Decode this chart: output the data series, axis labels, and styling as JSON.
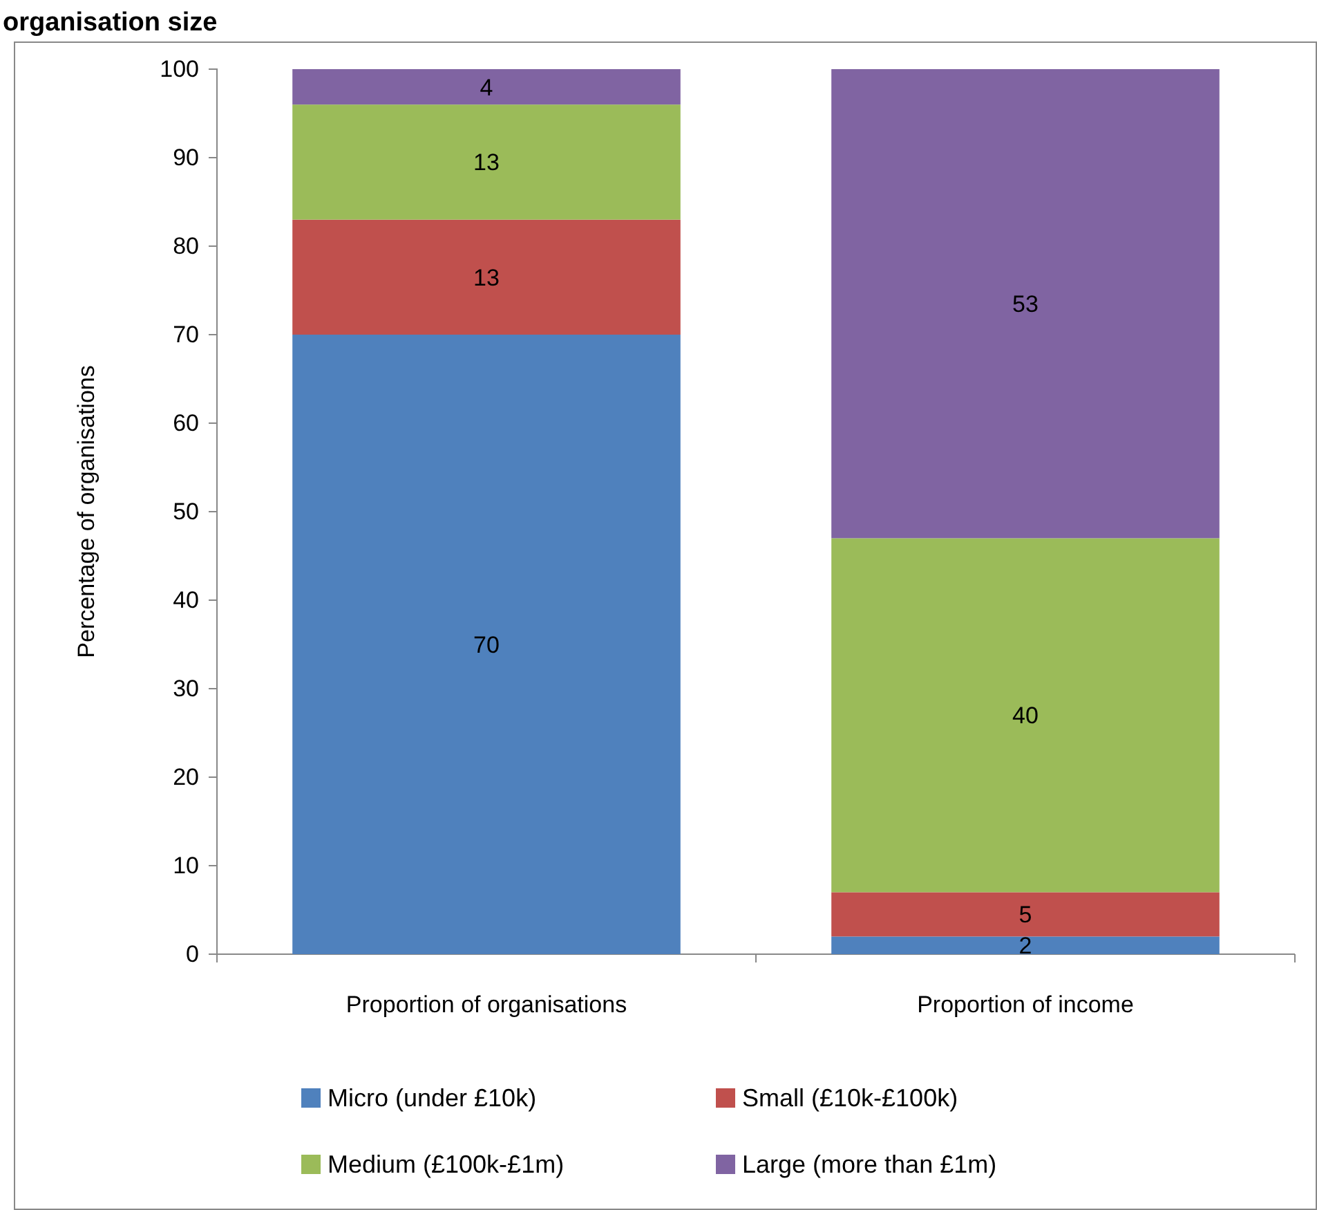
{
  "chart_data": {
    "type": "bar",
    "title": "organisation size",
    "ylabel": "Percentage of organisations",
    "categories": [
      "Proportion of organisations",
      "Proportion of income"
    ],
    "stacked": true,
    "ylim": [
      0,
      100
    ],
    "yticks": [
      0,
      10,
      20,
      30,
      40,
      50,
      60,
      70,
      80,
      90,
      100
    ],
    "data_labels": true,
    "legend": "bottom",
    "grid": false,
    "series": [
      {
        "name": "Micro (under £10k)",
        "color": "#4f81bd",
        "values": [
          70,
          2
        ]
      },
      {
        "name": "Small (£10k-£100k)",
        "color": "#c0504d",
        "values": [
          13,
          5
        ]
      },
      {
        "name": "Medium (£100k-£1m)",
        "color": "#9bbb59",
        "values": [
          13,
          40
        ]
      },
      {
        "name": "Large (more than £1m)",
        "color": "#8064a2",
        "values": [
          4,
          53
        ]
      }
    ]
  }
}
